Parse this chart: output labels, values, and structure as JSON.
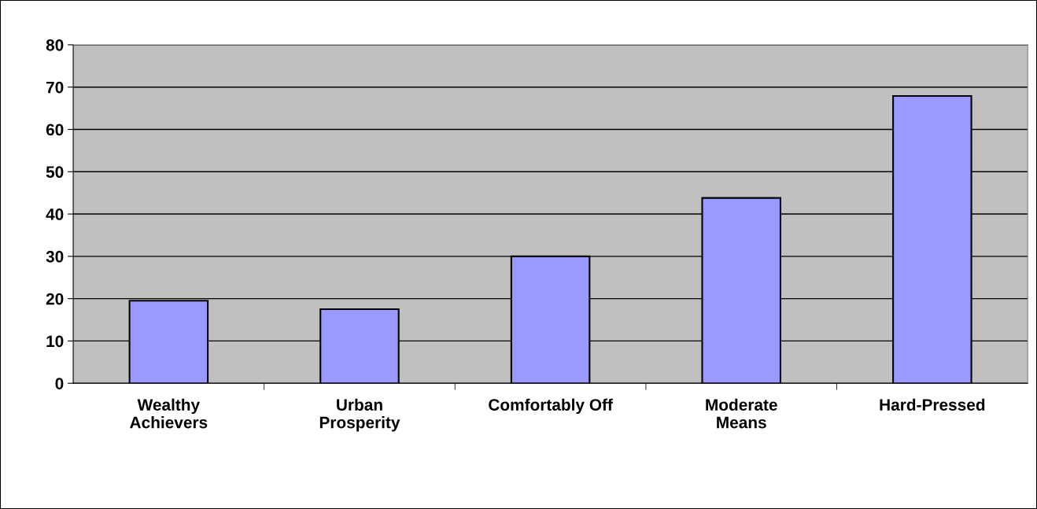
{
  "chart_data": {
    "type": "bar",
    "categories": [
      "Wealthy\nAchievers",
      "Urban\nProsperity",
      "Comfortably Off",
      "Moderate\nMeans",
      "Hard-Pressed"
    ],
    "values": [
      19.5,
      17.5,
      30,
      43.8,
      67.9
    ],
    "color": "#9999ff",
    "ylim": [
      0,
      80
    ],
    "yticks": [
      0,
      10,
      20,
      30,
      40,
      50,
      60,
      70,
      80
    ],
    "grid": "y",
    "legend": false
  }
}
